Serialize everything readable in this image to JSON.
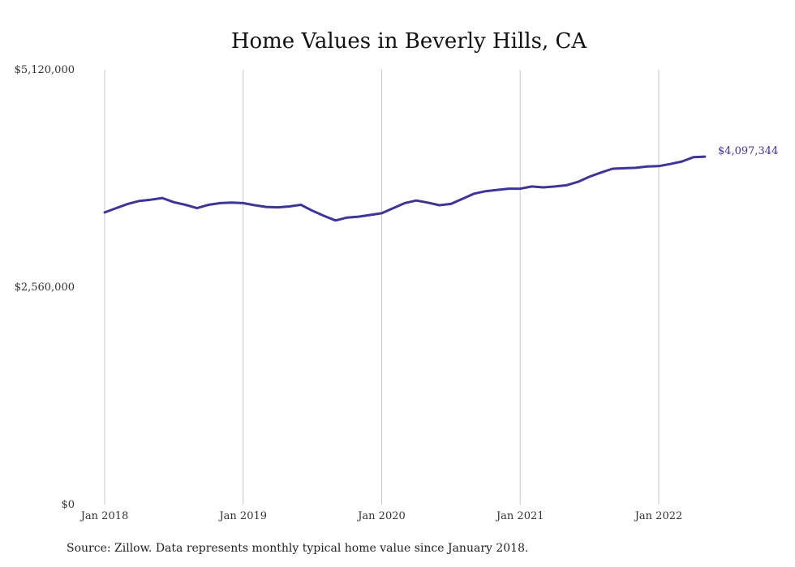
{
  "source_note": "Source: Zillow. Data represents monthly typical home value since January 2018.",
  "colors": {
    "line": "#3f3596",
    "grid": "#c8c8c8",
    "text": "#222222"
  },
  "chart_data": {
    "type": "line",
    "title": "Home Values in Beverly Hills, CA",
    "xlabel": "",
    "ylabel": "",
    "ylim": [
      0,
      5120000
    ],
    "y_ticks": [
      0,
      2560000,
      5120000
    ],
    "y_tick_labels": [
      "$0",
      "$2,560,000",
      "$5,120,000"
    ],
    "x_ticks": [
      "2018-01",
      "2019-01",
      "2020-01",
      "2021-01",
      "2022-01"
    ],
    "x_tick_labels": [
      "Jan 2018",
      "Jan 2019",
      "Jan 2020",
      "Jan 2021",
      "Jan 2022"
    ],
    "grid": "vertical",
    "end_label": "$4,097,344",
    "series": [
      {
        "x": [
          "2018-01",
          "2018-02",
          "2018-03",
          "2018-04",
          "2018-05",
          "2018-06",
          "2018-07",
          "2018-08",
          "2018-09",
          "2018-10",
          "2018-11",
          "2018-12",
          "2019-01",
          "2019-02",
          "2019-03",
          "2019-04",
          "2019-05",
          "2019-06",
          "2019-07",
          "2019-08",
          "2019-09",
          "2019-10",
          "2019-11",
          "2019-12",
          "2020-01",
          "2020-02",
          "2020-03",
          "2020-04",
          "2020-05",
          "2020-06",
          "2020-07",
          "2020-08",
          "2020-09",
          "2020-10",
          "2020-11",
          "2020-12",
          "2021-01",
          "2021-02",
          "2021-03",
          "2021-04",
          "2021-05",
          "2021-06",
          "2021-07",
          "2021-08",
          "2021-09",
          "2021-10",
          "2021-11",
          "2021-12",
          "2022-01",
          "2022-02",
          "2022-03",
          "2022-04",
          "2022-05"
        ],
        "values": [
          3440000,
          3490000,
          3540000,
          3575000,
          3590000,
          3610000,
          3560000,
          3530000,
          3490000,
          3530000,
          3550000,
          3555000,
          3550000,
          3525000,
          3505000,
          3500000,
          3510000,
          3530000,
          3460000,
          3400000,
          3345000,
          3380000,
          3390000,
          3410000,
          3430000,
          3490000,
          3550000,
          3580000,
          3555000,
          3525000,
          3540000,
          3600000,
          3660000,
          3690000,
          3705000,
          3720000,
          3720000,
          3745000,
          3735000,
          3745000,
          3760000,
          3800000,
          3860000,
          3910000,
          3955000,
          3960000,
          3965000,
          3980000,
          3985000,
          4010000,
          4040000,
          4090000,
          4097344
        ]
      }
    ]
  }
}
